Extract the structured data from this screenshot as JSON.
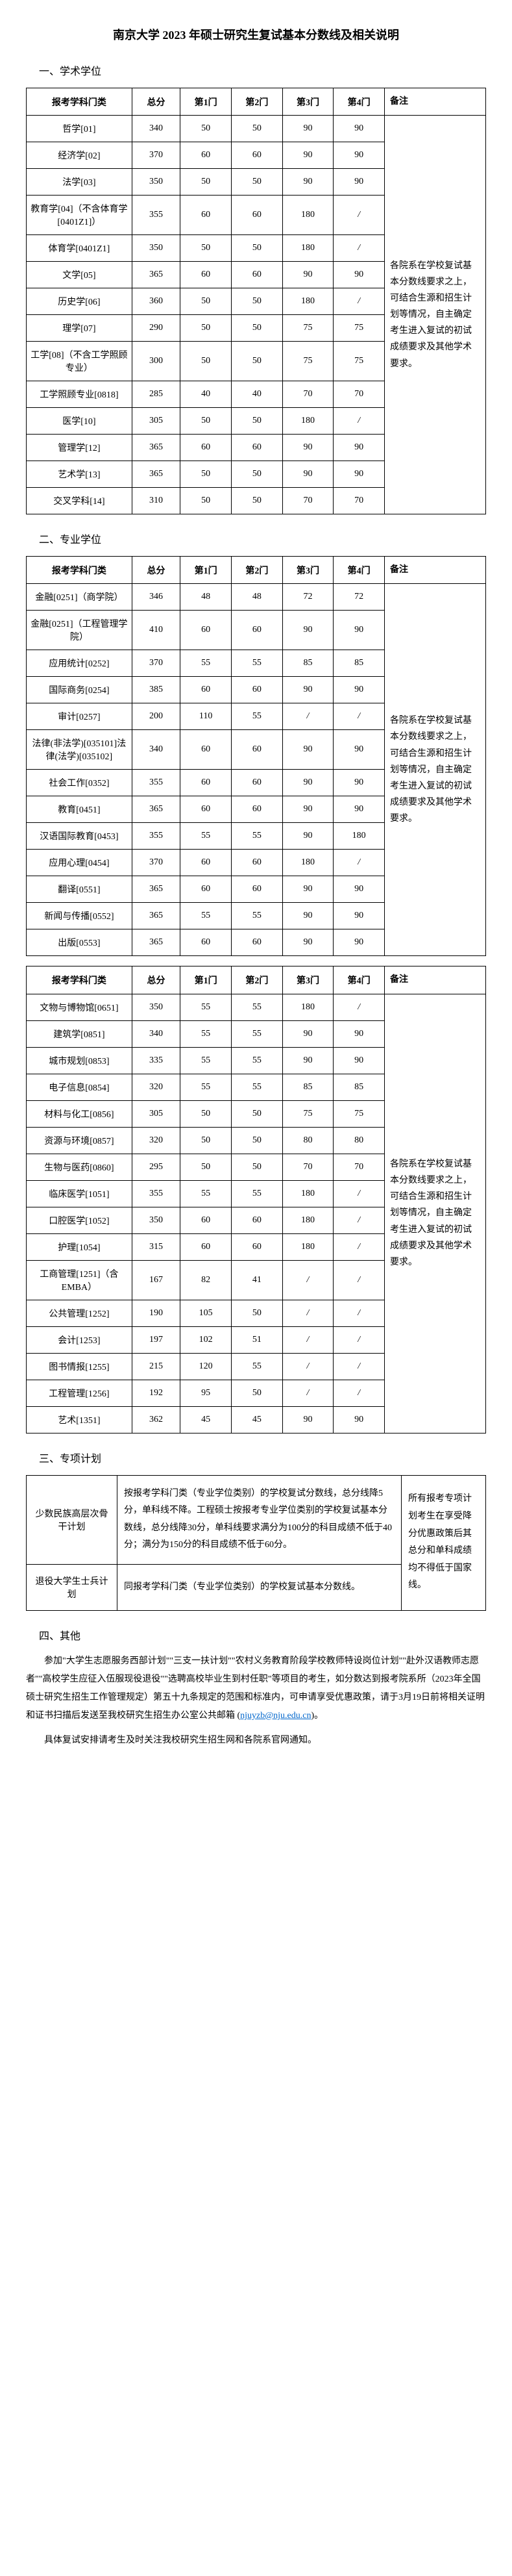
{
  "title": "南京大学 2023 年硕士研究生复试基本分数线及相关说明",
  "sec1": "一、学术学位",
  "sec2": "二、专业学位",
  "sec3": "三、专项计划",
  "sec4": "四、其他",
  "hdr": {
    "cat": "报考学科门类",
    "total": "总分",
    "s1": "第1门",
    "s2": "第2门",
    "s3": "第3门",
    "s4": "第4门",
    "remark": "备注"
  },
  "remark1": "各院系在学校复试基本分数线要求之上，可结合生源和招生计划等情况，自主确定考生进入复试的初试成绩要求及其他学术要求。",
  "remark2": "各院系在学校复试基本分数线要求之上，可结合生源和招生计划等情况，自主确定考生进入复试的初试成绩要求及其他学术要求。",
  "remark3": "各院系在学校复试基本分数线要求之上，可结合生源和招生计划等情况，自主确定考生进入复试的初试成绩要求及其他学术要求。",
  "t1": [
    {
      "c": "哲学[01]",
      "t": "340",
      "s1": "50",
      "s2": "50",
      "s3": "90",
      "s4": "90"
    },
    {
      "c": "经济学[02]",
      "t": "370",
      "s1": "60",
      "s2": "60",
      "s3": "90",
      "s4": "90"
    },
    {
      "c": "法学[03]",
      "t": "350",
      "s1": "50",
      "s2": "50",
      "s3": "90",
      "s4": "90"
    },
    {
      "c": "教育学[04]（不含体育学[0401Z1]）",
      "t": "355",
      "s1": "60",
      "s2": "60",
      "s3": "180",
      "s4": "/"
    },
    {
      "c": "体育学[0401Z1]",
      "t": "350",
      "s1": "50",
      "s2": "50",
      "s3": "180",
      "s4": "/"
    },
    {
      "c": "文学[05]",
      "t": "365",
      "s1": "60",
      "s2": "60",
      "s3": "90",
      "s4": "90"
    },
    {
      "c": "历史学[06]",
      "t": "360",
      "s1": "50",
      "s2": "50",
      "s3": "180",
      "s4": "/"
    },
    {
      "c": "理学[07]",
      "t": "290",
      "s1": "50",
      "s2": "50",
      "s3": "75",
      "s4": "75"
    },
    {
      "c": "工学[08]（不含工学照顾专业）",
      "t": "300",
      "s1": "50",
      "s2": "50",
      "s3": "75",
      "s4": "75"
    },
    {
      "c": "工学照顾专业[0818]",
      "t": "285",
      "s1": "40",
      "s2": "40",
      "s3": "70",
      "s4": "70"
    },
    {
      "c": "医学[10]",
      "t": "305",
      "s1": "50",
      "s2": "50",
      "s3": "180",
      "s4": "/"
    },
    {
      "c": "管理学[12]",
      "t": "365",
      "s1": "60",
      "s2": "60",
      "s3": "90",
      "s4": "90"
    },
    {
      "c": "艺术学[13]",
      "t": "365",
      "s1": "50",
      "s2": "50",
      "s3": "90",
      "s4": "90"
    },
    {
      "c": "交叉学科[14]",
      "t": "310",
      "s1": "50",
      "s2": "50",
      "s3": "70",
      "s4": "70"
    }
  ],
  "t2": [
    {
      "c": "金融[0251]（商学院）",
      "t": "346",
      "s1": "48",
      "s2": "48",
      "s3": "72",
      "s4": "72"
    },
    {
      "c": "金融[0251]（工程管理学院）",
      "t": "410",
      "s1": "60",
      "s2": "60",
      "s3": "90",
      "s4": "90"
    },
    {
      "c": "应用统计[0252]",
      "t": "370",
      "s1": "55",
      "s2": "55",
      "s3": "85",
      "s4": "85"
    },
    {
      "c": "国际商务[0254]",
      "t": "385",
      "s1": "60",
      "s2": "60",
      "s3": "90",
      "s4": "90"
    },
    {
      "c": "审计[0257]",
      "t": "200",
      "s1": "110",
      "s2": "55",
      "s3": "/",
      "s4": "/"
    },
    {
      "c": "法律(非法学)[035101]法律(法学)[035102]",
      "t": "340",
      "s1": "60",
      "s2": "60",
      "s3": "90",
      "s4": "90"
    },
    {
      "c": "社会工作[0352]",
      "t": "355",
      "s1": "60",
      "s2": "60",
      "s3": "90",
      "s4": "90"
    },
    {
      "c": "教育[0451]",
      "t": "365",
      "s1": "60",
      "s2": "60",
      "s3": "90",
      "s4": "90"
    },
    {
      "c": "汉语国际教育[0453]",
      "t": "355",
      "s1": "55",
      "s2": "55",
      "s3": "90",
      "s4": "180"
    },
    {
      "c": "应用心理[0454]",
      "t": "370",
      "s1": "60",
      "s2": "60",
      "s3": "180",
      "s4": "/"
    },
    {
      "c": "翻译[0551]",
      "t": "365",
      "s1": "60",
      "s2": "60",
      "s3": "90",
      "s4": "90"
    },
    {
      "c": "新闻与传播[0552]",
      "t": "365",
      "s1": "55",
      "s2": "55",
      "s3": "90",
      "s4": "90"
    },
    {
      "c": "出版[0553]",
      "t": "365",
      "s1": "60",
      "s2": "60",
      "s3": "90",
      "s4": "90"
    }
  ],
  "t3": [
    {
      "c": "文物与博物馆[0651]",
      "t": "350",
      "s1": "55",
      "s2": "55",
      "s3": "180",
      "s4": "/"
    },
    {
      "c": "建筑学[0851]",
      "t": "340",
      "s1": "55",
      "s2": "55",
      "s3": "90",
      "s4": "90"
    },
    {
      "c": "城市规划[0853]",
      "t": "335",
      "s1": "55",
      "s2": "55",
      "s3": "90",
      "s4": "90"
    },
    {
      "c": "电子信息[0854]",
      "t": "320",
      "s1": "55",
      "s2": "55",
      "s3": "85",
      "s4": "85"
    },
    {
      "c": "材料与化工[0856]",
      "t": "305",
      "s1": "50",
      "s2": "50",
      "s3": "75",
      "s4": "75"
    },
    {
      "c": "资源与环境[0857]",
      "t": "320",
      "s1": "50",
      "s2": "50",
      "s3": "80",
      "s4": "80"
    },
    {
      "c": "生物与医药[0860]",
      "t": "295",
      "s1": "50",
      "s2": "50",
      "s3": "70",
      "s4": "70"
    },
    {
      "c": "临床医学[1051]",
      "t": "355",
      "s1": "55",
      "s2": "55",
      "s3": "180",
      "s4": "/"
    },
    {
      "c": "口腔医学[1052]",
      "t": "350",
      "s1": "60",
      "s2": "60",
      "s3": "180",
      "s4": "/"
    },
    {
      "c": "护理[1054]",
      "t": "315",
      "s1": "60",
      "s2": "60",
      "s3": "180",
      "s4": "/"
    },
    {
      "c": "工商管理[1251]（含 EMBA）",
      "t": "167",
      "s1": "82",
      "s2": "41",
      "s3": "/",
      "s4": "/"
    },
    {
      "c": "公共管理[1252]",
      "t": "190",
      "s1": "105",
      "s2": "50",
      "s3": "/",
      "s4": "/"
    },
    {
      "c": "会计[1253]",
      "t": "197",
      "s1": "102",
      "s2": "51",
      "s3": "/",
      "s4": "/"
    },
    {
      "c": "图书情报[1255]",
      "t": "215",
      "s1": "120",
      "s2": "55",
      "s3": "/",
      "s4": "/"
    },
    {
      "c": "工程管理[1256]",
      "t": "192",
      "s1": "95",
      "s2": "50",
      "s3": "/",
      "s4": "/"
    },
    {
      "c": "艺术[1351]",
      "t": "362",
      "s1": "45",
      "s2": "45",
      "s3": "90",
      "s4": "90"
    }
  ],
  "sp": {
    "r1_l": "少数民族高层次骨干计划",
    "r1_m": "按报考学科门类（专业学位类别）的学校复试分数线，总分线降5分，单科线不降。工程硕士按报考专业学位类别的学校复试基本分数线，总分线降30分，单科线要求满分为100分的科目成绩不低于40分；满分为150分的科目成绩不低于60分。",
    "r1_r": "所有报考专项计划考生在享受降分优惠政策后其总分和单科成绩均不得低于国家线。",
    "r2_l": "退役大学生士兵计划",
    "r2_m": "同报考学科门类（专业学位类别）的学校复试基本分数线。"
  },
  "other1": "参加\"大学生志愿服务西部计划\"\"三支一扶计划\"\"农村义务教育阶段学校教师特设岗位计划\"\"赴外汉语教师志愿者\"\"高校学生应征入伍服现役退役\"\"选聘高校毕业生到村任职\"等项目的考生，如分数达到报考院系所（2023年全国硕士研究生招生工作管理规定）第五十九条规定的范围和标准内，可申请享受优惠政策，请于3月19日前将相关证明和证书扫描后发送至我校研究生招生办公室公共邮箱",
  "email_label": "njuyzb@nju.edu.cn",
  "email_after": "。",
  "other2": "具体复试安排请考生及时关注我校研究生招生网和各院系官网通知。"
}
